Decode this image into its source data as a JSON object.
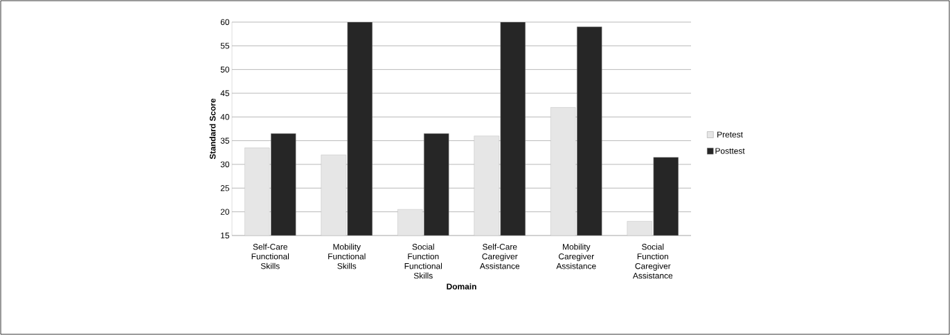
{
  "chart_data": {
    "type": "bar",
    "xlabel": "Domain",
    "ylabel": "Standard Score",
    "categories": [
      "Self-Care Functional Skills",
      "Mobility Functional Skills",
      "Social Function Functional Skills",
      "Self-Care Caregiver Assistance",
      "Mobility Caregiver Assistance",
      "Social Function Caregiver Assistance"
    ],
    "series": [
      {
        "name": "Pretest",
        "color": "#e6e6e6",
        "values": [
          33.5,
          32,
          20.5,
          36,
          42,
          18
        ]
      },
      {
        "name": "Posttest",
        "color": "#262626",
        "values": [
          36.5,
          60,
          36.5,
          60,
          59,
          31.5
        ]
      }
    ],
    "ylim": [
      15,
      60
    ],
    "yticks": [
      15,
      20,
      25,
      30,
      35,
      40,
      45,
      50,
      55,
      60
    ],
    "grid": "y",
    "legend": "right"
  }
}
